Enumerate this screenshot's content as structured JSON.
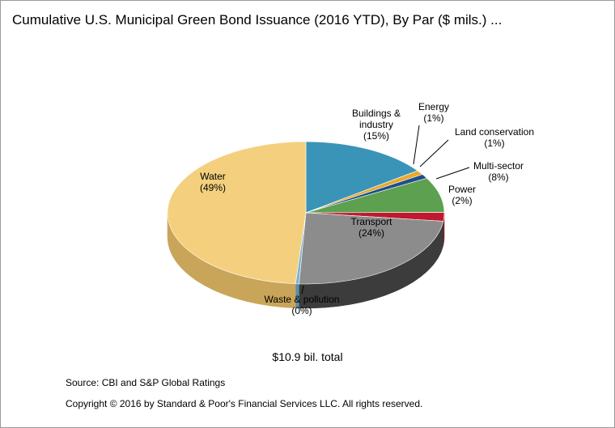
{
  "title": "Cumulative U.S. Municipal Green Bond Issuance (2016 YTD), By Par ($ mils.) ...",
  "chart_data": {
    "type": "pie",
    "title": "Cumulative U.S. Municipal Green Bond Issuance (2016 YTD), By Par ($ mils.) ...",
    "total_label": "$10.9  bil. total",
    "slices": [
      {
        "name": "Buildings & industry",
        "label_lines": [
          "Buildings &",
          "industry",
          "(15%)"
        ],
        "percent": 15,
        "color": "#3a94b8",
        "side": "#2a6f8c"
      },
      {
        "name": "Energy",
        "label_lines": [
          "Energy",
          "(1%)"
        ],
        "percent": 1,
        "color": "#e8a92c",
        "side": "#b07e18"
      },
      {
        "name": "Land conservation",
        "label_lines": [
          "Land conservation",
          "(1%)"
        ],
        "percent": 1,
        "color": "#1f4e8c",
        "side": "#163a68"
      },
      {
        "name": "Multi-sector",
        "label_lines": [
          "Multi-sector",
          "(8%)"
        ],
        "percent": 8,
        "color": "#5da050",
        "side": "#3f7535"
      },
      {
        "name": "Power",
        "label_lines": [
          "Power",
          "(2%)"
        ],
        "percent": 2,
        "color": "#c0182e",
        "side": "#8c0f20"
      },
      {
        "name": "Transport",
        "label_lines": [
          "Transport",
          "(24%)"
        ],
        "percent": 24,
        "color": "#8c8c8c",
        "side": "#3c3c3c"
      },
      {
        "name": "Waste & pollution",
        "label_lines": [
          "Waste & pollution",
          "(0%)"
        ],
        "percent": 0.4,
        "color": "#7fb3d0",
        "side": "#5a8fae"
      },
      {
        "name": "Water",
        "label_lines": [
          "Water",
          "(49%)"
        ],
        "percent": 49,
        "color": "#f4d07e",
        "side": "#c9a55a"
      }
    ]
  },
  "footer": {
    "source": "Source: CBI and S&P Global Ratings",
    "copyright": "Copyright © 2016 by Standard & Poor's Financial Services LLC. All rights reserved."
  }
}
